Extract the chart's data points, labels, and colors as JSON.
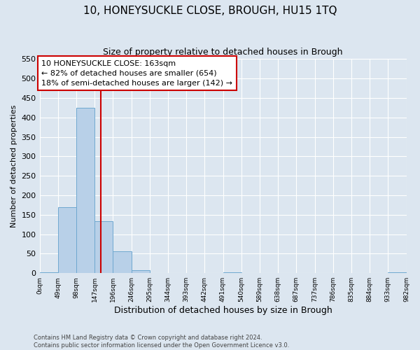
{
  "title": "10, HONEYSUCKLE CLOSE, BROUGH, HU15 1TQ",
  "subtitle": "Size of property relative to detached houses in Brough",
  "xlabel": "Distribution of detached houses by size in Brough",
  "ylabel": "Number of detached properties",
  "bin_edges": [
    0,
    49,
    98,
    147,
    196,
    245,
    294,
    343,
    392,
    441,
    490,
    539,
    588,
    637,
    686,
    735,
    784,
    833,
    882,
    931,
    980
  ],
  "bin_labels": [
    "0sqm",
    "49sqm",
    "98sqm",
    "147sqm",
    "196sqm",
    "246sqm",
    "295sqm",
    "344sqm",
    "393sqm",
    "442sqm",
    "491sqm",
    "540sqm",
    "589sqm",
    "638sqm",
    "687sqm",
    "737sqm",
    "786sqm",
    "835sqm",
    "884sqm",
    "933sqm",
    "982sqm"
  ],
  "counts": [
    3,
    170,
    424,
    134,
    57,
    7,
    0,
    0,
    0,
    0,
    3,
    0,
    0,
    0,
    0,
    0,
    0,
    0,
    0,
    3
  ],
  "bar_color": "#b8d0e8",
  "bar_edge_color": "#6fa8d0",
  "property_size": 163,
  "vline_color": "#cc0000",
  "annotation_line1": "10 HONEYSUCKLE CLOSE: 163sqm",
  "annotation_line2": "← 82% of detached houses are smaller (654)",
  "annotation_line3": "18% of semi-detached houses are larger (142) →",
  "annotation_box_color": "#ffffff",
  "annotation_box_edge_color": "#cc0000",
  "ylim": [
    0,
    550
  ],
  "yticks": [
    0,
    50,
    100,
    150,
    200,
    250,
    300,
    350,
    400,
    450,
    500,
    550
  ],
  "xlim": [
    0,
    980
  ],
  "background_color": "#dce6f0",
  "grid_color": "#ffffff",
  "footer_line1": "Contains HM Land Registry data © Crown copyright and database right 2024.",
  "footer_line2": "Contains public sector information licensed under the Open Government Licence v3.0.",
  "title_fontsize": 11,
  "subtitle_fontsize": 9,
  "ylabel_fontsize": 8,
  "xlabel_fontsize": 9,
  "ytick_fontsize": 8,
  "xtick_fontsize": 6.5
}
